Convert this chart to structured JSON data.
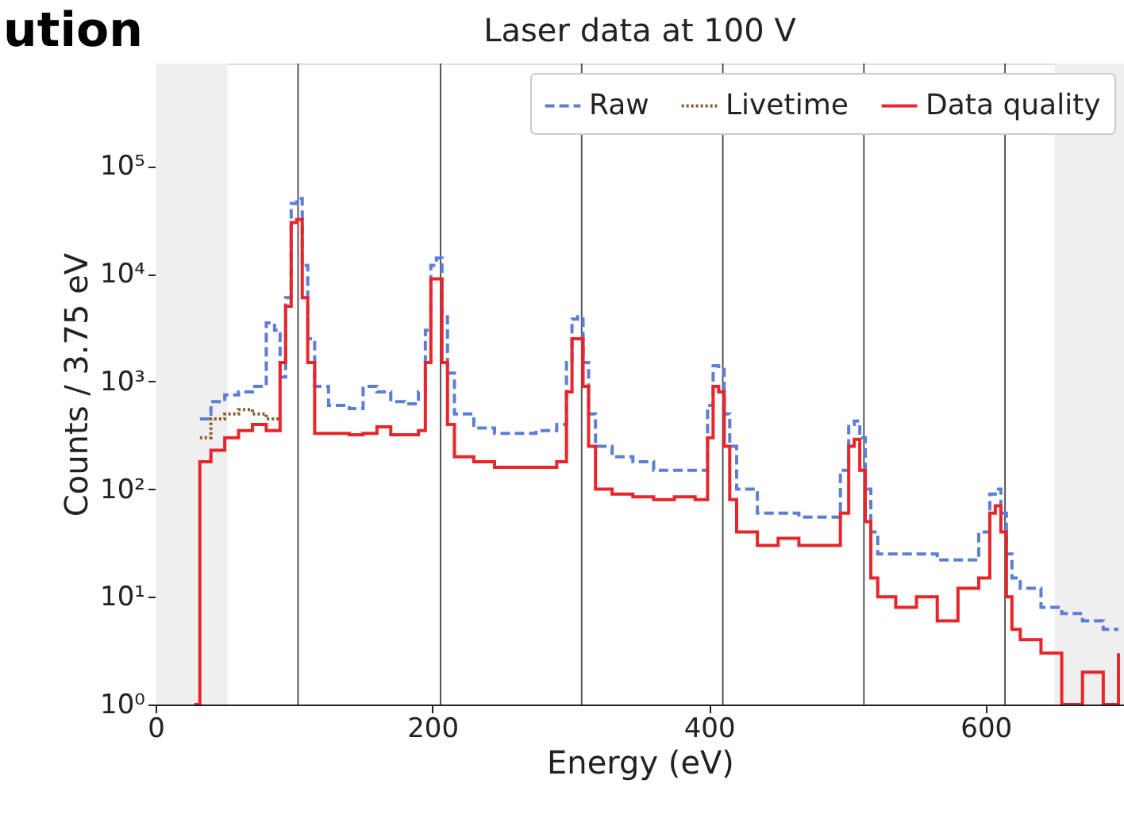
{
  "chart_data": {
    "type": "step",
    "title": "Laser data at 100 V",
    "xlabel": "Energy (eV)",
    "ylabel": "Counts / 3.75 eV",
    "annotations": [
      "ution"
    ],
    "x": [
      28,
      32,
      40,
      50,
      60,
      70,
      80,
      86,
      90,
      94,
      98,
      102,
      106,
      110,
      115,
      125,
      140,
      150,
      160,
      170,
      180,
      190,
      195,
      199,
      203,
      207,
      211,
      216,
      230,
      245,
      260,
      275,
      290,
      297,
      301,
      305,
      309,
      313,
      318,
      330,
      345,
      360,
      375,
      390,
      399,
      403,
      407,
      411,
      415,
      420,
      435,
      450,
      465,
      480,
      495,
      501,
      505,
      509,
      513,
      517,
      522,
      535,
      550,
      565,
      580,
      595,
      603,
      607,
      611,
      615,
      619,
      625,
      640,
      655,
      670,
      685,
      696
    ],
    "series": [
      {
        "name": "Raw",
        "color": "#5b7fd6",
        "line_style": "dashed",
        "values": [
          null,
          450,
          650,
          750,
          800,
          900,
          3500,
          3000,
          1100,
          6000,
          45000,
          50000,
          12000,
          2500,
          900,
          600,
          560,
          900,
          800,
          650,
          620,
          800,
          3000,
          12000,
          14000,
          4000,
          1200,
          500,
          370,
          330,
          330,
          350,
          400,
          1500,
          3800,
          4000,
          1500,
          500,
          250,
          200,
          180,
          150,
          150,
          150,
          600,
          1400,
          1300,
          500,
          250,
          100,
          60,
          60,
          55,
          55,
          150,
          400,
          430,
          300,
          100,
          40,
          25,
          25,
          25,
          22,
          22,
          40,
          90,
          100,
          60,
          25,
          15,
          12,
          8,
          7,
          6,
          5,
          5
        ]
      },
      {
        "name": "Livetime",
        "color": "#8b5a2b",
        "line_style": "dotted",
        "values": [
          null,
          300,
          450,
          500,
          550,
          500,
          450,
          450,
          450,
          null,
          null,
          null,
          null,
          null,
          null,
          null,
          null,
          null,
          null,
          null,
          null,
          null,
          null,
          null,
          null,
          null,
          null,
          null,
          null,
          null,
          null,
          null,
          null,
          null,
          null,
          null,
          null,
          null,
          null,
          null,
          null,
          null,
          null,
          null,
          null,
          null,
          null,
          null,
          null,
          null,
          null,
          null,
          null,
          null,
          null,
          null,
          null,
          null,
          null,
          null,
          null,
          null,
          null,
          null,
          null,
          null,
          null,
          null,
          null,
          null,
          null,
          null,
          null,
          null,
          null,
          null,
          null
        ]
      },
      {
        "name": "Data quality",
        "color": "#e8262a",
        "line_style": "solid",
        "values": [
          1,
          180,
          230,
          300,
          350,
          400,
          350,
          350,
          1500,
          5000,
          30000,
          32000,
          6000,
          1500,
          330,
          330,
          320,
          330,
          380,
          320,
          320,
          350,
          1500,
          9000,
          9000,
          1500,
          400,
          200,
          180,
          160,
          160,
          160,
          180,
          800,
          2500,
          2500,
          900,
          250,
          100,
          90,
          85,
          80,
          85,
          80,
          300,
          900,
          800,
          250,
          80,
          40,
          30,
          35,
          30,
          30,
          60,
          250,
          290,
          150,
          50,
          15,
          10,
          8,
          10,
          6,
          12,
          15,
          60,
          70,
          40,
          10,
          5,
          4,
          3,
          1,
          2,
          1,
          3
        ]
      }
    ],
    "xlim": [
      0,
      700
    ],
    "xticks": [
      0,
      200,
      400,
      600
    ],
    "ylim": [
      1,
      900000
    ],
    "yticks": [
      {
        "value": 1,
        "label": "10⁰"
      },
      {
        "value": 10,
        "label": "10¹"
      },
      {
        "value": 100,
        "label": "10²"
      },
      {
        "value": 1000,
        "label": "10³"
      },
      {
        "value": 10000,
        "label": "10⁴"
      },
      {
        "value": 100000,
        "label": "10⁵"
      }
    ],
    "log": "y",
    "grid": false,
    "legend": "top right",
    "marker": "none",
    "ref_lines": [
      {
        "axis": "x",
        "value": 103,
        "color": "#555555"
      },
      {
        "axis": "x",
        "value": 206,
        "color": "#555555"
      },
      {
        "axis": "x",
        "value": 308,
        "color": "#555555"
      },
      {
        "axis": "x",
        "value": 410,
        "color": "#555555"
      },
      {
        "axis": "x",
        "value": 512,
        "color": "#555555"
      },
      {
        "axis": "x",
        "value": 614,
        "color": "#555555"
      }
    ],
    "bands": [
      {
        "axis": "x",
        "from": 0,
        "to": 52,
        "color": "#efefef"
      },
      {
        "axis": "x",
        "from": 650,
        "to": 700,
        "color": "#efefef"
      }
    ]
  }
}
